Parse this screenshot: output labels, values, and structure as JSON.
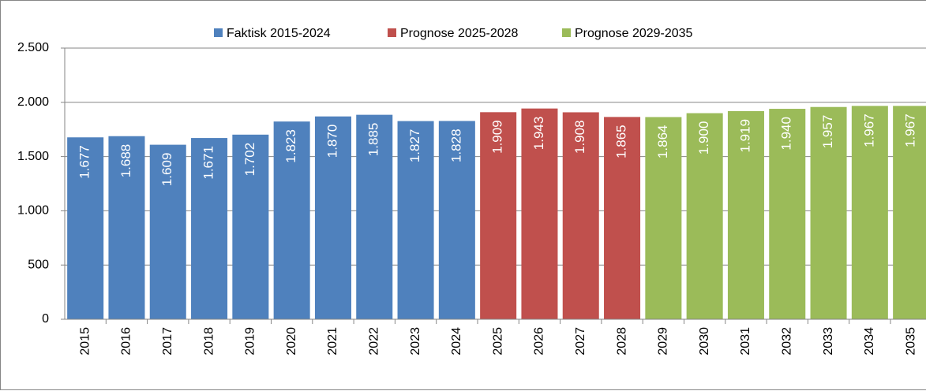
{
  "chart_data": {
    "type": "bar",
    "categories": [
      "2015",
      "2016",
      "2017",
      "2018",
      "2019",
      "2020",
      "2021",
      "2022",
      "2023",
      "2024",
      "2025",
      "2026",
      "2027",
      "2028",
      "2029",
      "2030",
      "2031",
      "2032",
      "2033",
      "2034",
      "2035"
    ],
    "series": [
      {
        "name": "Faktisk 2015-2024",
        "color": "#4f81bd",
        "values": [
          1677,
          1688,
          1609,
          1671,
          1702,
          1823,
          1870,
          1885,
          1827,
          1828,
          null,
          null,
          null,
          null,
          null,
          null,
          null,
          null,
          null,
          null,
          null
        ],
        "value_labels": [
          "1.677",
          "1.688",
          "1.609",
          "1.671",
          "1.702",
          "1.823",
          "1.870",
          "1.885",
          "1.827",
          "1.828",
          null,
          null,
          null,
          null,
          null,
          null,
          null,
          null,
          null,
          null,
          null
        ]
      },
      {
        "name": "Prognose 2025-2028",
        "color": "#c0504d",
        "values": [
          null,
          null,
          null,
          null,
          null,
          null,
          null,
          null,
          null,
          null,
          1909,
          1943,
          1908,
          1865,
          null,
          null,
          null,
          null,
          null,
          null,
          null
        ],
        "value_labels": [
          null,
          null,
          null,
          null,
          null,
          null,
          null,
          null,
          null,
          null,
          "1.909",
          "1.943",
          "1.908",
          "1.865",
          null,
          null,
          null,
          null,
          null,
          null,
          null
        ]
      },
      {
        "name": "Prognose 2029-2035",
        "color": "#9bbb59",
        "values": [
          null,
          null,
          null,
          null,
          null,
          null,
          null,
          null,
          null,
          null,
          null,
          null,
          null,
          null,
          1864,
          1900,
          1919,
          1940,
          1957,
          1967,
          1967
        ],
        "value_labels": [
          null,
          null,
          null,
          null,
          null,
          null,
          null,
          null,
          null,
          null,
          null,
          null,
          null,
          null,
          "1.864",
          "1.900",
          "1.919",
          "1.940",
          "1.957",
          "1.967",
          "1.967"
        ]
      }
    ],
    "ylim": [
      0,
      2500
    ],
    "yticks": [
      0,
      500,
      {
        "value": 1000,
        "label": "1.000"
      },
      {
        "value": 1500,
        "label": "1.500"
      },
      {
        "value": 2000,
        "label": "2.000"
      },
      {
        "value": 2500,
        "label": "2.500"
      }
    ],
    "grid": true,
    "legend": "top"
  }
}
